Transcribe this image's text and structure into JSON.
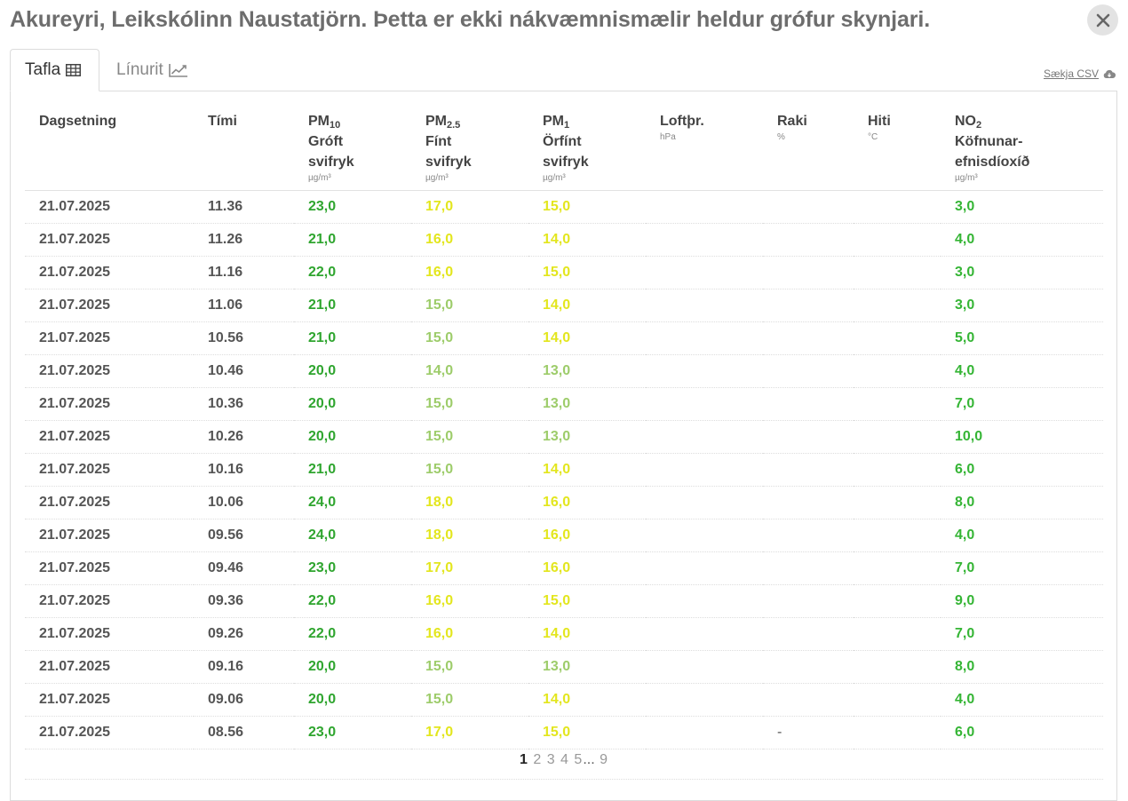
{
  "title": "Akureyri, Leikskólinn Naustatjörn. Þetta er ekki nákvæmnismælir heldur grófur skynjari.",
  "close_icon": "close-icon",
  "tabs": [
    {
      "label": "Tafla",
      "icon": "table-icon",
      "active": true
    },
    {
      "label": "Línurit",
      "icon": "line-chart-icon",
      "active": false
    }
  ],
  "csv_link": {
    "label": "Sækja CSV",
    "icon": "cloud-download-icon"
  },
  "columns": {
    "date": {
      "label": "Dagsetning"
    },
    "time": {
      "label": "Tími"
    },
    "pm10": {
      "main": "PM",
      "sub": "10",
      "line2": "Gróft",
      "line3": "svifryk",
      "unit": "µg/m³"
    },
    "pm25": {
      "main": "PM",
      "sub": "2.5",
      "line2": "Fínt",
      "line3": "svifryk",
      "unit": "µg/m³"
    },
    "pm1": {
      "main": "PM",
      "sub": "1",
      "line2": "Örfínt",
      "line3": "svifryk",
      "unit": "µg/m³"
    },
    "pressure": {
      "label": "Loftþr.",
      "unit": "hPa"
    },
    "humidity": {
      "label": "Raki",
      "unit": "%"
    },
    "temp": {
      "label": "Hiti",
      "unit": "°C"
    },
    "no2": {
      "main": "NO",
      "sub": "2",
      "line2": "Köfnunar-",
      "line3": "efnisdíoxíð",
      "unit": "µg/m³"
    }
  },
  "colors": {
    "dark_green": "#2fa52f",
    "green": "#35b535",
    "light_green": "#9dcc6a",
    "yellow": "#e3e61e"
  },
  "rows": [
    {
      "date": "21.07.2025",
      "time": "11.36",
      "pm10": "23,0",
      "pm25": "17,0",
      "pm1": "15,0",
      "pressure": "",
      "humidity": "",
      "temp": "",
      "no2": "3,0"
    },
    {
      "date": "21.07.2025",
      "time": "11.26",
      "pm10": "21,0",
      "pm25": "16,0",
      "pm1": "14,0",
      "pressure": "",
      "humidity": "",
      "temp": "",
      "no2": "4,0"
    },
    {
      "date": "21.07.2025",
      "time": "11.16",
      "pm10": "22,0",
      "pm25": "16,0",
      "pm1": "15,0",
      "pressure": "",
      "humidity": "",
      "temp": "",
      "no2": "3,0"
    },
    {
      "date": "21.07.2025",
      "time": "11.06",
      "pm10": "21,0",
      "pm25": "15,0",
      "pm1": "14,0",
      "pressure": "",
      "humidity": "",
      "temp": "",
      "no2": "3,0"
    },
    {
      "date": "21.07.2025",
      "time": "10.56",
      "pm10": "21,0",
      "pm25": "15,0",
      "pm1": "14,0",
      "pressure": "",
      "humidity": "",
      "temp": "",
      "no2": "5,0"
    },
    {
      "date": "21.07.2025",
      "time": "10.46",
      "pm10": "20,0",
      "pm25": "14,0",
      "pm1": "13,0",
      "pressure": "",
      "humidity": "",
      "temp": "",
      "no2": "4,0"
    },
    {
      "date": "21.07.2025",
      "time": "10.36",
      "pm10": "20,0",
      "pm25": "15,0",
      "pm1": "13,0",
      "pressure": "",
      "humidity": "",
      "temp": "",
      "no2": "7,0"
    },
    {
      "date": "21.07.2025",
      "time": "10.26",
      "pm10": "20,0",
      "pm25": "15,0",
      "pm1": "13,0",
      "pressure": "",
      "humidity": "",
      "temp": "",
      "no2": "10,0"
    },
    {
      "date": "21.07.2025",
      "time": "10.16",
      "pm10": "21,0",
      "pm25": "15,0",
      "pm1": "14,0",
      "pressure": "",
      "humidity": "",
      "temp": "",
      "no2": "6,0"
    },
    {
      "date": "21.07.2025",
      "time": "10.06",
      "pm10": "24,0",
      "pm25": "18,0",
      "pm1": "16,0",
      "pressure": "",
      "humidity": "",
      "temp": "",
      "no2": "8,0"
    },
    {
      "date": "21.07.2025",
      "time": "09.56",
      "pm10": "24,0",
      "pm25": "18,0",
      "pm1": "16,0",
      "pressure": "",
      "humidity": "",
      "temp": "",
      "no2": "4,0"
    },
    {
      "date": "21.07.2025",
      "time": "09.46",
      "pm10": "23,0",
      "pm25": "17,0",
      "pm1": "16,0",
      "pressure": "",
      "humidity": "",
      "temp": "",
      "no2": "7,0"
    },
    {
      "date": "21.07.2025",
      "time": "09.36",
      "pm10": "22,0",
      "pm25": "16,0",
      "pm1": "15,0",
      "pressure": "",
      "humidity": "",
      "temp": "",
      "no2": "9,0"
    },
    {
      "date": "21.07.2025",
      "time": "09.26",
      "pm10": "22,0",
      "pm25": "16,0",
      "pm1": "14,0",
      "pressure": "",
      "humidity": "",
      "temp": "",
      "no2": "7,0"
    },
    {
      "date": "21.07.2025",
      "time": "09.16",
      "pm10": "20,0",
      "pm25": "15,0",
      "pm1": "13,0",
      "pressure": "",
      "humidity": "",
      "temp": "",
      "no2": "8,0"
    },
    {
      "date": "21.07.2025",
      "time": "09.06",
      "pm10": "20,0",
      "pm25": "15,0",
      "pm1": "14,0",
      "pressure": "",
      "humidity": "",
      "temp": "",
      "no2": "4,0"
    },
    {
      "date": "21.07.2025",
      "time": "08.56",
      "pm10": "23,0",
      "pm25": "17,0",
      "pm1": "15,0",
      "pressure": "",
      "humidity": "-",
      "temp": "",
      "no2": "6,0"
    }
  ],
  "pagination": {
    "current": "1",
    "pages": [
      "2",
      "3",
      "4",
      "5"
    ],
    "ellipsis": "...",
    "last": "9"
  }
}
